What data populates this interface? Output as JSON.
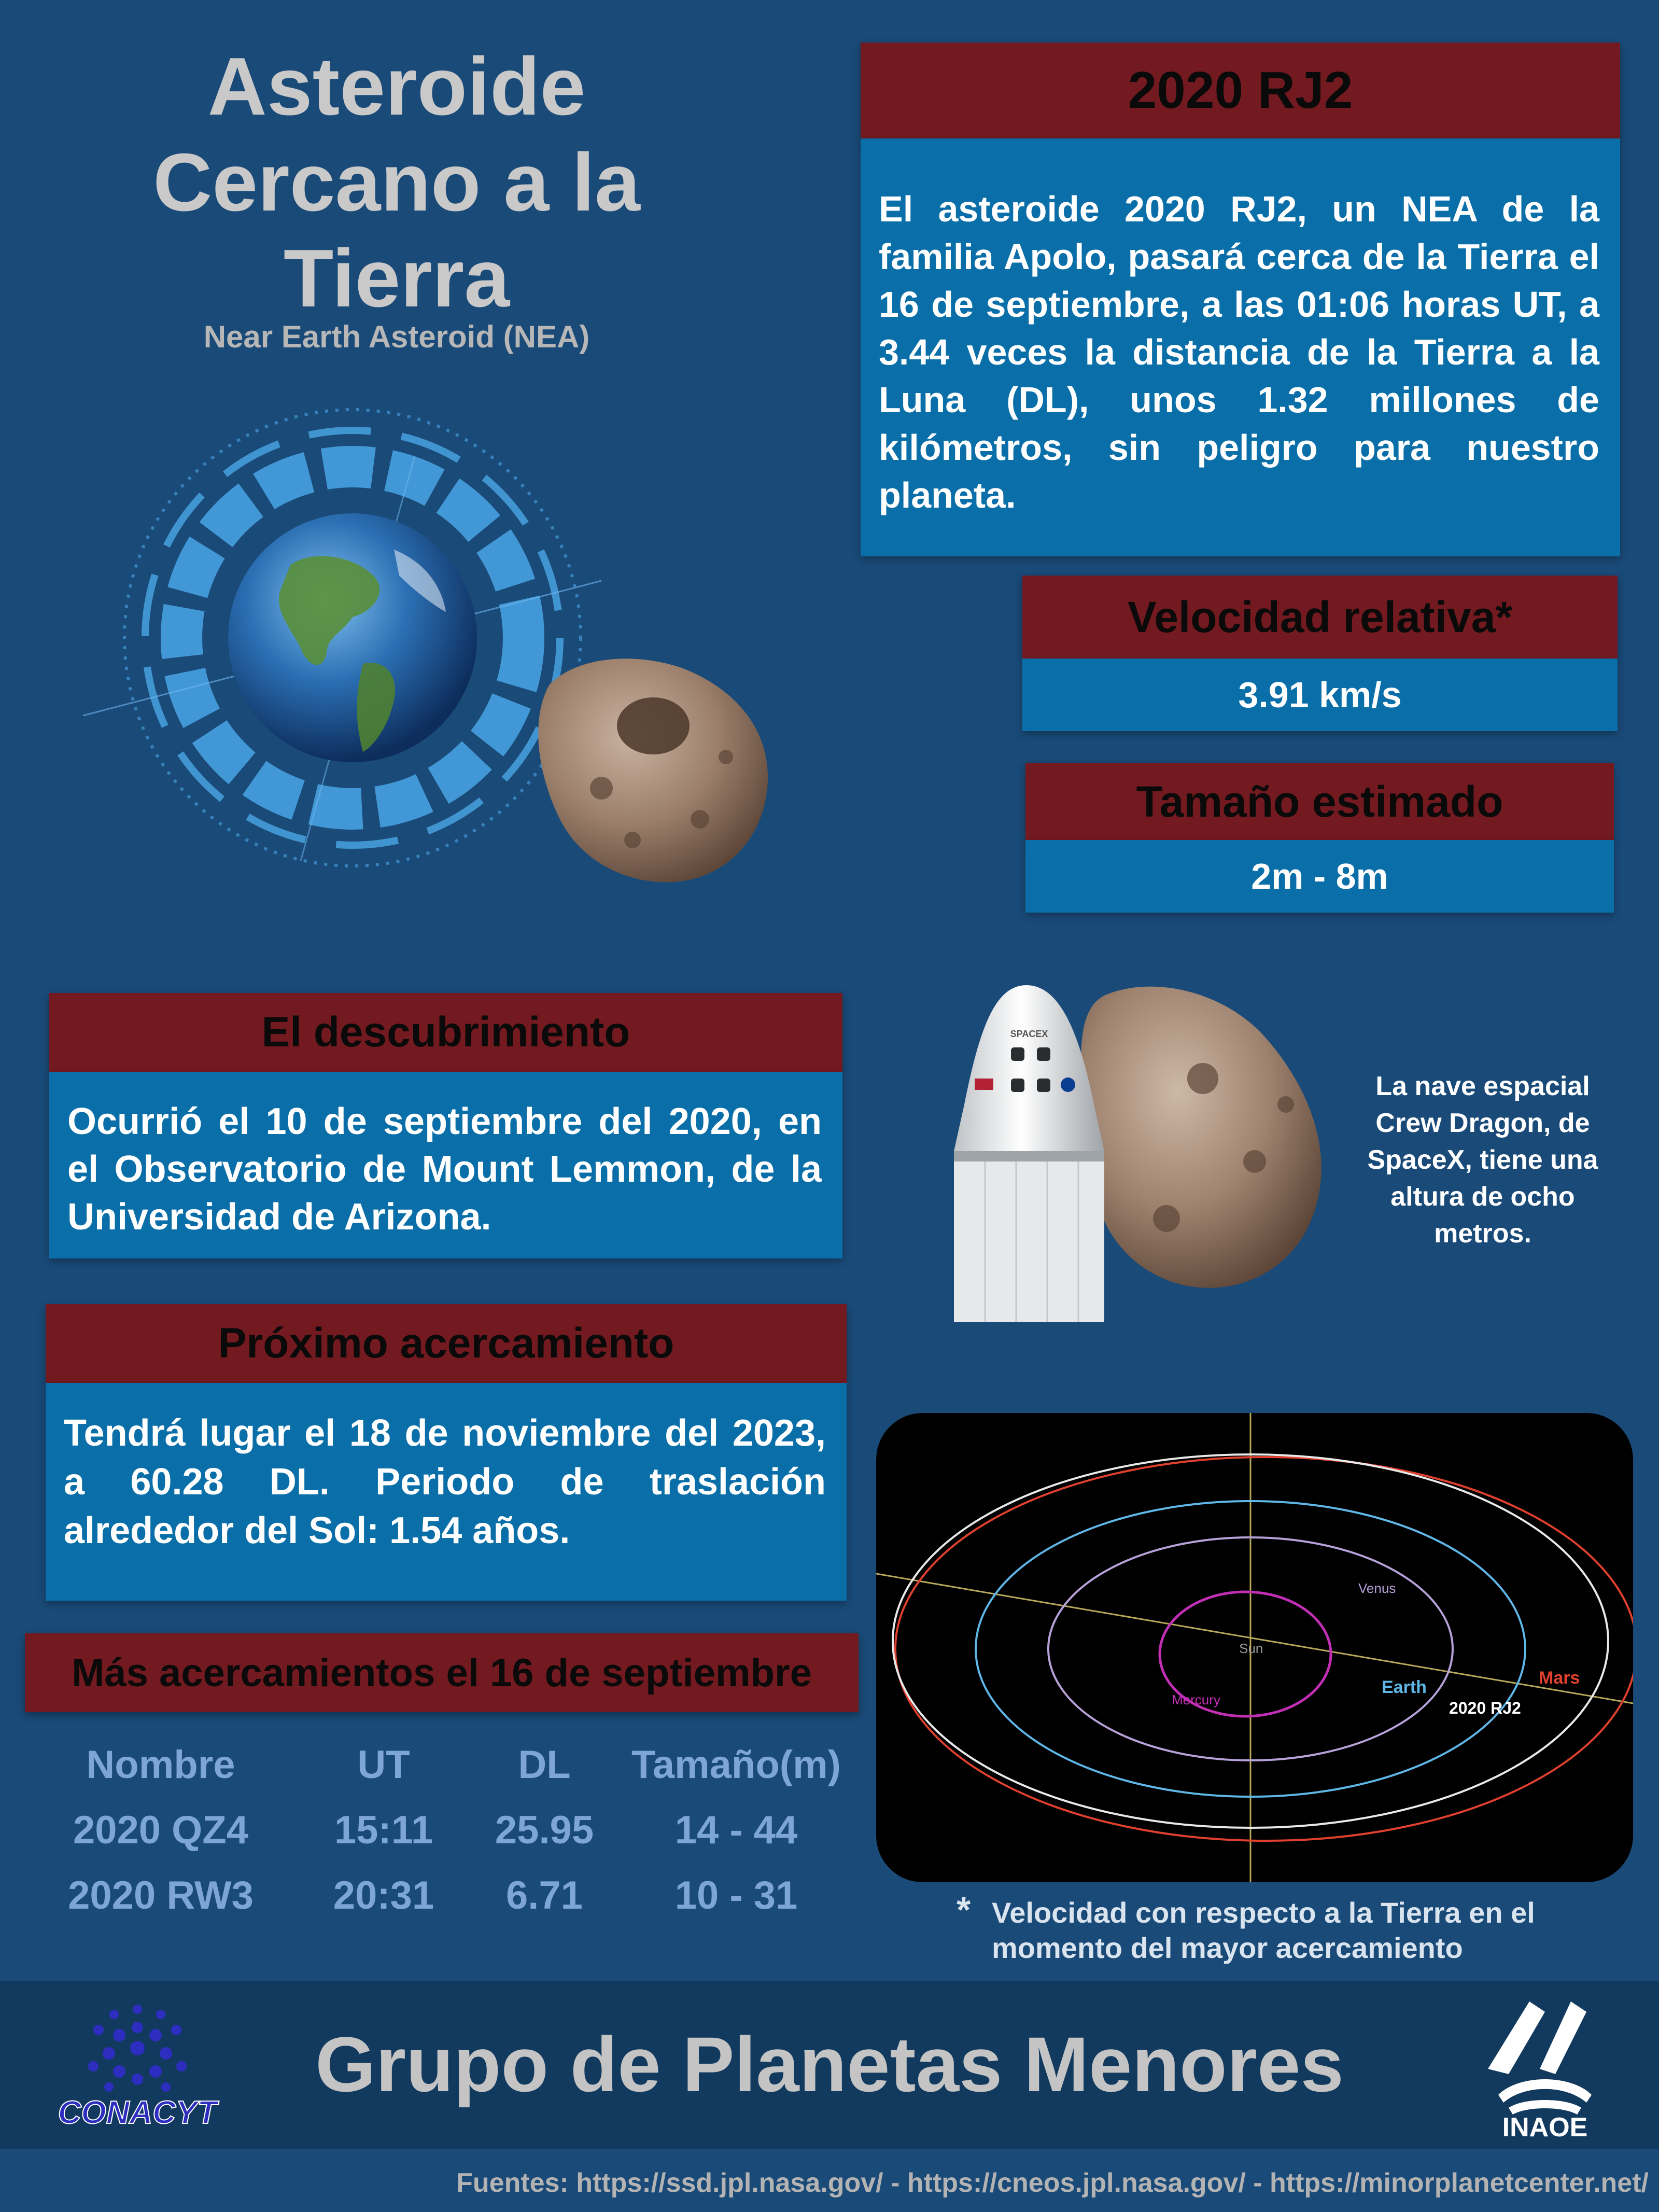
{
  "title": {
    "line1": "Asteroide",
    "line2": "Cercano a la",
    "line3": "Tierra",
    "subtitle": "Near Earth Asteroid (NEA)"
  },
  "asteroid_box": {
    "name": "2020 RJ2",
    "description": "El asteroide 2020 RJ2, un NEA de la familia Apolo, pasará cerca de la Tierra el 16 de septiembre, a las 01:06 horas UT, a 3.44 veces la distancia de la Tierra a la Luna (DL), unos 1.32 millones de kilómetros, sin peligro para nuestro planeta."
  },
  "velocity": {
    "label": "Velocidad relativa*",
    "value": "3.91 km/s"
  },
  "size": {
    "label": "Tamaño estimado",
    "value": "2m - 8m"
  },
  "discovery": {
    "label": "El descubrimiento",
    "text": "Ocurrió el 10 de septiembre del 2020, en el Observatorio de Mount Lemmon, de la Universidad de Arizona."
  },
  "next_approach": {
    "label": "Próximo acercamiento",
    "text": "Tendrá lugar el 18 de noviembre del 2023, a 60.28 DL. Periodo de traslación alrededor del Sol: 1.54 años."
  },
  "more_approaches": {
    "label": "Más acercamientos el 16 de septiembre",
    "headers": [
      "Nombre",
      "UT",
      "DL",
      "Tamaño(m)"
    ],
    "rows": [
      [
        "2020 QZ4",
        "15:11",
        "25.95",
        "14 - 44"
      ],
      [
        "2020 RW3",
        "20:31",
        "6.71",
        "10 - 31"
      ]
    ]
  },
  "crew_dragon": {
    "text": "La nave espacial Crew Dragon, de SpaceX, tiene una altura de ocho metros.",
    "capsule_label": "SPACEX"
  },
  "orbit_diagram": {
    "labels": {
      "venus": "Venus",
      "sun": "Sun",
      "mercury": "Mercury",
      "earth": "Earth",
      "mars": "Mars",
      "asteroid": "2020 RJ2"
    },
    "colors": {
      "mercury": "#c22fb5",
      "venus": "#b7a1d9",
      "earth": "#5fb7e8",
      "mars": "#e0402e",
      "asteroid": "#e8e8e8",
      "axis": "#b8a85a"
    }
  },
  "footnote": {
    "marker": "*",
    "text": "Velocidad con respecto a la Tierra en el momento del mayor acercamiento"
  },
  "footer": {
    "title": "Grupo de Planetas Menores",
    "left_logo_text": "CONACYT",
    "right_logo_text": "INAOE",
    "sources": "Fuentes: https://ssd.jpl.nasa.gov/ - https://cneos.jpl.nasa.gov/ -  https://minorplanetcenter.net/"
  },
  "colors": {
    "background": "#1a4a78",
    "header_red": "#721a1f",
    "box_blue": "#0a6fa8",
    "accent_light_blue": "#4aa6e6"
  }
}
